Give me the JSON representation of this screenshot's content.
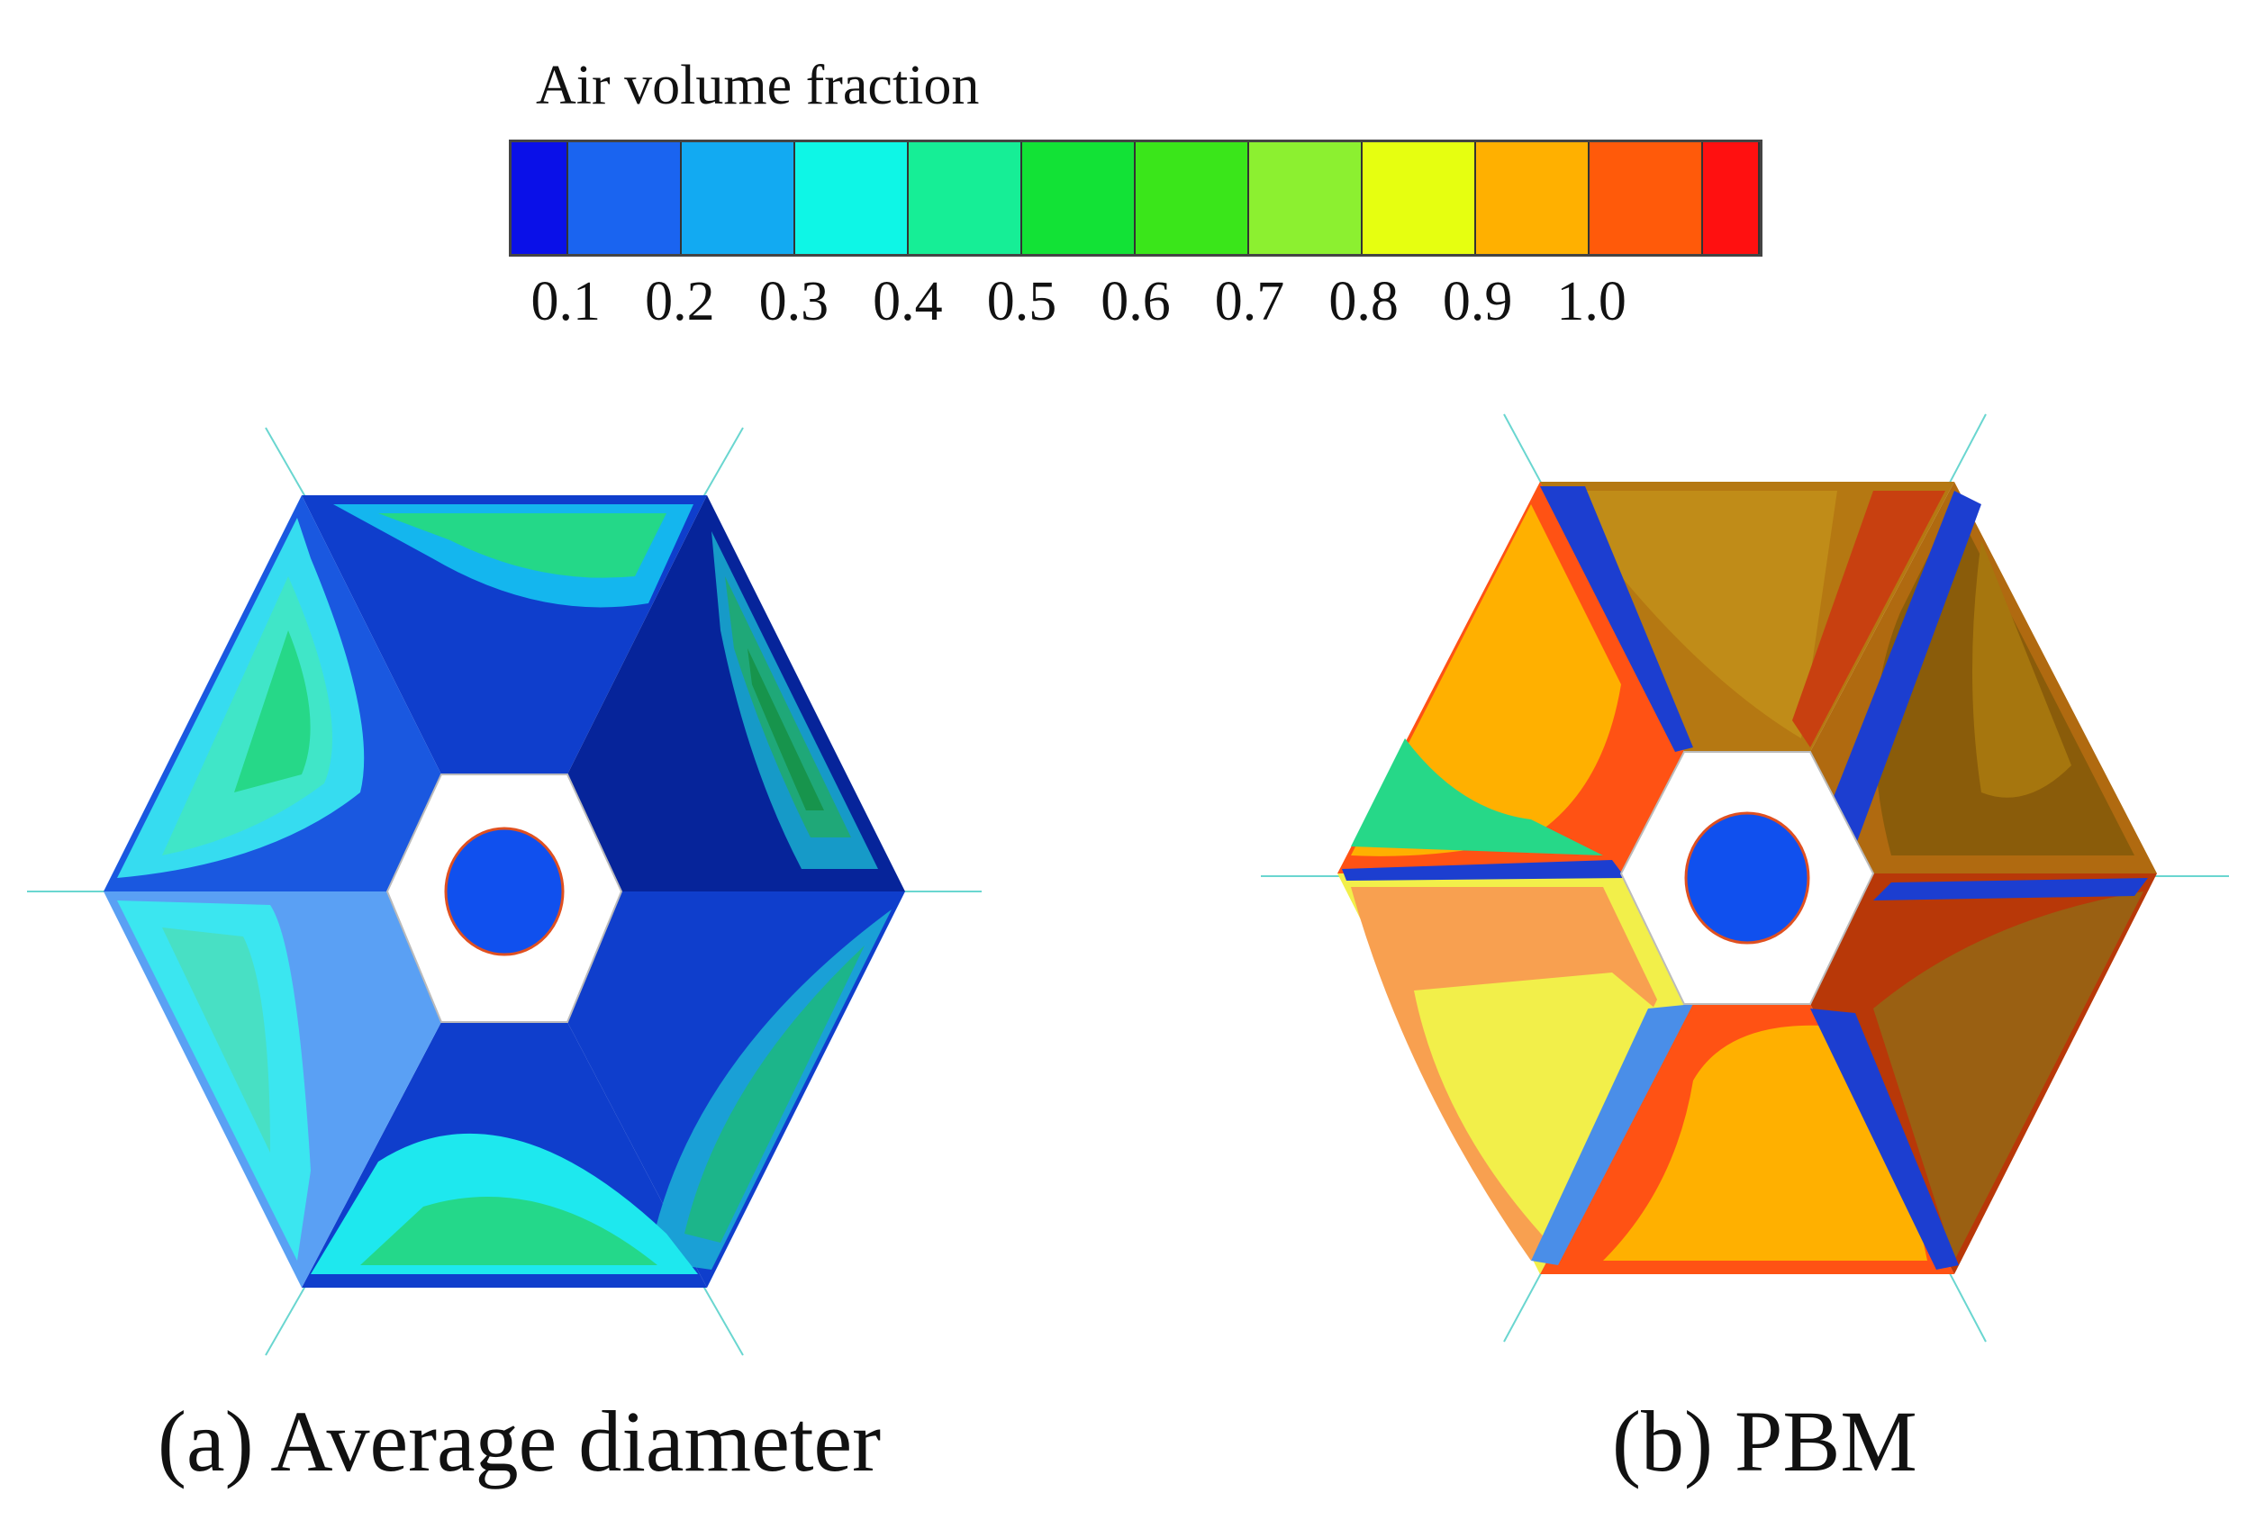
{
  "legend": {
    "title": "Air volume fraction",
    "colors": [
      "#0a10e8",
      "#1a64f0",
      "#12aaf2",
      "#0ef6e6",
      "#16ee96",
      "#12e236",
      "#3ae61a",
      "#8cf030",
      "#e6ff10",
      "#ffb000",
      "#ff5a0a",
      "#ff1010"
    ],
    "tick_labels": [
      "0.1",
      "0.2",
      "0.3",
      "0.4",
      "0.5",
      "0.6",
      "0.7",
      "0.8",
      "0.9",
      "1.0"
    ]
  },
  "panels": [
    {
      "caption": "(a) Average diameter",
      "field_colors": {
        "blue": "#0f3ecc",
        "deep": "#06249a",
        "cyan": "#3be6f0",
        "green": "#24d888",
        "lightblue": "#5aa0f4"
      }
    },
    {
      "caption": "(b) PBM",
      "field_colors": {
        "orange": "#f5a020",
        "red": "#ff5214",
        "yellow": "#f2ef4a",
        "brown": "#b57812",
        "darkred": "#b83808",
        "blue": "#0f3ecc"
      }
    }
  ]
}
